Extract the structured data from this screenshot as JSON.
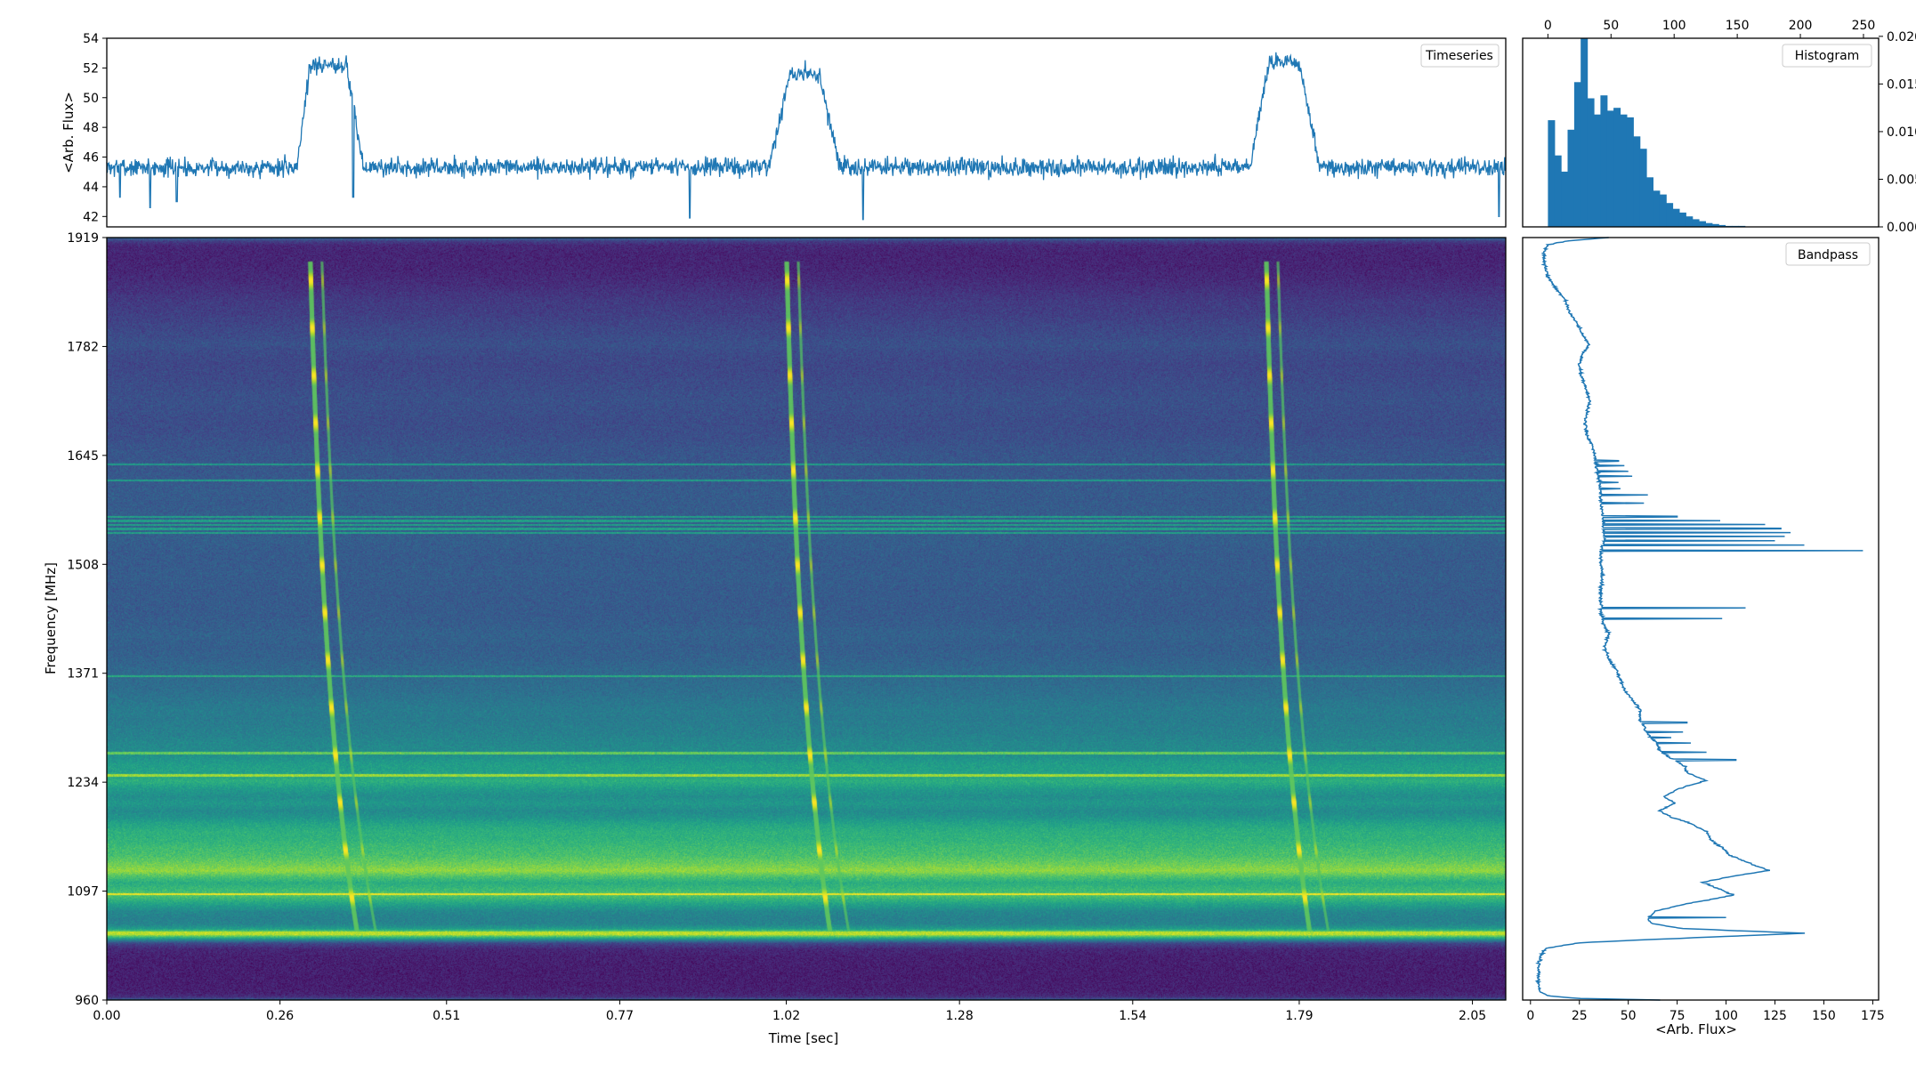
{
  "colors": {
    "line": "#1f77b4",
    "axis": "#000000",
    "cmap": [
      "#440154",
      "#482878",
      "#3e4989",
      "#31688e",
      "#26828e",
      "#1f9e89",
      "#35b779",
      "#6ece58",
      "#b5de2b",
      "#fde725"
    ]
  },
  "chart_data": [
    {
      "id": "timeseries",
      "type": "line",
      "legend": "Timeseries",
      "legend_position": "upper right",
      "ylabel": "<Arb. Flux>",
      "xlim": [
        0,
        2.1
      ],
      "ylim": [
        41.3,
        54
      ],
      "yticks": [
        42,
        44,
        46,
        48,
        50,
        52,
        54
      ],
      "baseline": 45.3,
      "noise": 0.55,
      "pulses": [
        {
          "start": 0.285,
          "peak_start": 0.305,
          "peak_end": 0.36,
          "end": 0.385,
          "peak": 52.2
        },
        {
          "start": 0.995,
          "peak_start": 1.025,
          "peak_end": 1.07,
          "end": 1.1,
          "peak": 51.6
        },
        {
          "start": 1.715,
          "peak_start": 1.745,
          "peak_end": 1.79,
          "end": 1.82,
          "peak": 52.4
        }
      ],
      "spikes": [
        [
          0.02,
          43.3
        ],
        [
          0.065,
          42.6
        ],
        [
          0.105,
          43.0
        ],
        [
          0.37,
          43.3
        ],
        [
          0.875,
          41.9
        ],
        [
          1.135,
          41.8
        ],
        [
          2.09,
          42.0
        ]
      ]
    },
    {
      "id": "histogram",
      "type": "bar",
      "legend": "Histogram",
      "legend_position": "upper right",
      "xlim": [
        -20,
        262
      ],
      "xticks": [
        0,
        50,
        100,
        150,
        200,
        250
      ],
      "ylim": [
        0,
        0.0198
      ],
      "yticks": [
        0.0,
        0.005,
        0.01,
        0.015,
        0.02
      ],
      "bin_width": 5.2,
      "values": [
        0.0112,
        0.0075,
        0.0058,
        0.0102,
        0.0152,
        0.0208,
        0.0135,
        0.0118,
        0.0138,
        0.0122,
        0.0125,
        0.0118,
        0.0115,
        0.0095,
        0.0082,
        0.0052,
        0.0038,
        0.0034,
        0.0025,
        0.0019,
        0.0015,
        0.0011,
        0.0008,
        0.0006,
        0.0004,
        0.0003,
        0.0002,
        0.0001,
        0.0001,
        0.0001
      ]
    },
    {
      "id": "dynamic_spectrum",
      "type": "heatmap",
      "xlabel": "Time [sec]",
      "ylabel": "Frequency [MHz]",
      "xlim": [
        0,
        2.1
      ],
      "ylim": [
        960,
        1919
      ],
      "xticks": [
        0.0,
        0.26,
        0.51,
        0.77,
        1.02,
        1.28,
        1.54,
        1.79,
        2.05
      ],
      "yticks": [
        960,
        1097,
        1234,
        1371,
        1508,
        1645,
        1782,
        1919
      ],
      "tick_labels_x": [
        "0.00",
        "0.26",
        "0.51",
        "0.77",
        "1.02",
        "1.28",
        "1.54",
        "1.79",
        "2.05"
      ],
      "pulse_times_top": [
        0.305,
        1.02,
        1.74
      ],
      "pulse_times_bottom": [
        0.375,
        1.085,
        1.805
      ],
      "rfi_bands_mhz": [
        1548,
        1553,
        1558,
        1563,
        1568,
        1614,
        1634,
        1368,
        1271,
        1243,
        1094
      ],
      "bright_band_mhz": 1045
    },
    {
      "id": "bandpass",
      "type": "line",
      "legend": "Bandpass",
      "legend_position": "upper right",
      "xlabel": "<Arb. Flux>",
      "xlim": [
        -4,
        178
      ],
      "ylim": [
        960,
        1919
      ],
      "xticks": [
        0,
        25,
        50,
        75,
        100,
        125,
        150,
        175
      ],
      "profile": [
        [
          960,
          66
        ],
        [
          962,
          25
        ],
        [
          965,
          10
        ],
        [
          970,
          5
        ],
        [
          980,
          4
        ],
        [
          1000,
          4
        ],
        [
          1015,
          5
        ],
        [
          1025,
          8
        ],
        [
          1032,
          25
        ],
        [
          1036,
          60
        ],
        [
          1040,
          100
        ],
        [
          1044,
          140
        ],
        [
          1047,
          108
        ],
        [
          1050,
          78
        ],
        [
          1056,
          62
        ],
        [
          1063,
          60
        ],
        [
          1072,
          64
        ],
        [
          1082,
          82
        ],
        [
          1092,
          104
        ],
        [
          1100,
          96
        ],
        [
          1108,
          88
        ],
        [
          1116,
          104
        ],
        [
          1123,
          122
        ],
        [
          1132,
          112
        ],
        [
          1142,
          102
        ],
        [
          1152,
          98
        ],
        [
          1162,
          92
        ],
        [
          1172,
          90
        ],
        [
          1182,
          82
        ],
        [
          1190,
          72
        ],
        [
          1198,
          66
        ],
        [
          1208,
          74
        ],
        [
          1216,
          68
        ],
        [
          1226,
          76
        ],
        [
          1236,
          90
        ],
        [
          1246,
          80
        ],
        [
          1256,
          78
        ],
        [
          1264,
          72
        ],
        [
          1274,
          66
        ],
        [
          1284,
          64
        ],
        [
          1294,
          60
        ],
        [
          1304,
          58
        ],
        [
          1314,
          56
        ],
        [
          1326,
          56
        ],
        [
          1338,
          52
        ],
        [
          1350,
          48
        ],
        [
          1362,
          46
        ],
        [
          1374,
          44
        ],
        [
          1390,
          40
        ],
        [
          1405,
          38
        ],
        [
          1420,
          40
        ],
        [
          1435,
          37
        ],
        [
          1450,
          36
        ],
        [
          1465,
          36
        ],
        [
          1480,
          36
        ],
        [
          1495,
          37
        ],
        [
          1510,
          36
        ],
        [
          1522,
          36
        ],
        [
          1530,
          37
        ],
        [
          1540,
          38
        ],
        [
          1555,
          37
        ],
        [
          1570,
          37
        ],
        [
          1585,
          36
        ],
        [
          1600,
          36
        ],
        [
          1615,
          35
        ],
        [
          1625,
          34
        ],
        [
          1640,
          33
        ],
        [
          1655,
          32
        ],
        [
          1670,
          29
        ],
        [
          1685,
          28
        ],
        [
          1700,
          29
        ],
        [
          1715,
          30
        ],
        [
          1730,
          28
        ],
        [
          1745,
          26
        ],
        [
          1760,
          25
        ],
        [
          1775,
          27
        ],
        [
          1785,
          30
        ],
        [
          1795,
          27
        ],
        [
          1810,
          24
        ],
        [
          1825,
          20
        ],
        [
          1840,
          18
        ],
        [
          1855,
          13
        ],
        [
          1870,
          9
        ],
        [
          1885,
          7
        ],
        [
          1900,
          7
        ],
        [
          1910,
          9
        ],
        [
          1915,
          20
        ],
        [
          1919,
          40
        ]
      ],
      "spikes": [
        [
          1525,
          170
        ],
        [
          1532,
          140
        ],
        [
          1538,
          125
        ],
        [
          1543,
          130
        ],
        [
          1548,
          133
        ],
        [
          1553,
          128
        ],
        [
          1558,
          120
        ],
        [
          1563,
          97
        ],
        [
          1568,
          75
        ],
        [
          1585,
          58
        ],
        [
          1595,
          60
        ],
        [
          1603,
          46
        ],
        [
          1611,
          45
        ],
        [
          1619,
          52
        ],
        [
          1625,
          50
        ],
        [
          1632,
          48
        ],
        [
          1638,
          45
        ],
        [
          1453,
          110
        ],
        [
          1440,
          98
        ],
        [
          1262,
          105
        ],
        [
          1272,
          90
        ],
        [
          1283,
          82
        ],
        [
          1297,
          78
        ],
        [
          1309,
          80
        ],
        [
          1290,
          72
        ],
        [
          1227,
          78
        ],
        [
          1064,
          100
        ]
      ]
    }
  ]
}
